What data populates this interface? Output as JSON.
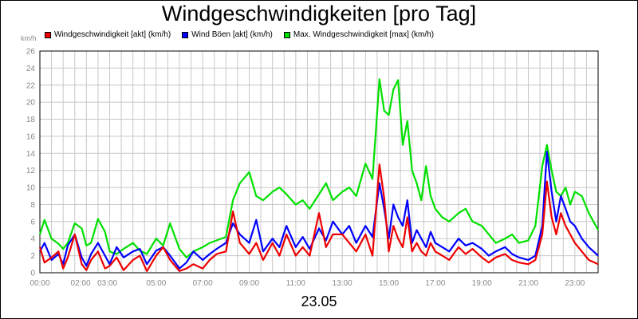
{
  "chart_data": {
    "type": "line",
    "title": "Windgeschwindigkeiten [pro Tag]",
    "ylabel": "km/h",
    "xlabel": "23.05",
    "ylim": [
      0,
      26
    ],
    "yticks": [
      0,
      2,
      4,
      6,
      8,
      10,
      12,
      14,
      16,
      18,
      20,
      22,
      24,
      26
    ],
    "xlim": [
      0,
      24
    ],
    "xticks": [
      {
        "label": "00:00",
        "t": 0
      },
      {
        "label": "02:00",
        "t": 1.75
      },
      {
        "label": "03:00",
        "t": 2.9
      },
      {
        "label": "05:00",
        "t": 5
      },
      {
        "label": "07:00",
        "t": 7
      },
      {
        "label": "09:00",
        "t": 9
      },
      {
        "label": "11:00",
        "t": 11
      },
      {
        "label": "13:00",
        "t": 13
      },
      {
        "label": "15:00",
        "t": 15
      },
      {
        "label": "17:00",
        "t": 17
      },
      {
        "label": "19:00",
        "t": 19
      },
      {
        "label": "21:00",
        "t": 21
      },
      {
        "label": "23:00",
        "t": 23
      }
    ],
    "grid": true,
    "legend_position": "top-left",
    "series": [
      {
        "name": "Max. Windgeschwindigkeit [max] (km/h)",
        "color": "#00e000",
        "x": [
          0,
          0.2,
          0.5,
          0.8,
          1.0,
          1.2,
          1.5,
          1.8,
          2.0,
          2.2,
          2.5,
          2.8,
          3.0,
          3.3,
          3.6,
          4.0,
          4.3,
          4.6,
          5.0,
          5.3,
          5.6,
          6.0,
          6.3,
          6.6,
          7.0,
          7.3,
          7.6,
          8.0,
          8.3,
          8.6,
          9.0,
          9.3,
          9.6,
          10.0,
          10.3,
          10.6,
          11.0,
          11.3,
          11.6,
          12.0,
          12.3,
          12.6,
          13.0,
          13.3,
          13.6,
          14.0,
          14.3,
          14.6,
          14.8,
          15.0,
          15.2,
          15.4,
          15.6,
          15.8,
          16.0,
          16.2,
          16.4,
          16.6,
          16.8,
          17.0,
          17.3,
          17.6,
          18.0,
          18.3,
          18.6,
          19.0,
          19.3,
          19.6,
          20.0,
          20.3,
          20.6,
          21.0,
          21.3,
          21.6,
          21.8,
          22.0,
          22.2,
          22.4,
          22.6,
          22.8,
          23.0,
          23.3,
          23.6,
          24.0
        ],
        "values": [
          4.5,
          6.2,
          4.0,
          3.4,
          2.8,
          3.5,
          5.8,
          5.2,
          3.2,
          3.5,
          6.3,
          4.8,
          2.5,
          2.2,
          2.8,
          3.5,
          2.6,
          2.2,
          4.0,
          3.2,
          5.8,
          2.8,
          1.8,
          2.5,
          3.0,
          3.5,
          3.8,
          4.2,
          8.5,
          10.5,
          11.8,
          9.0,
          8.5,
          9.5,
          10.0,
          9.2,
          8.0,
          8.5,
          7.5,
          9.2,
          10.5,
          8.5,
          9.5,
          10.0,
          9.0,
          12.8,
          11.0,
          22.7,
          19.0,
          18.5,
          21.5,
          22.6,
          15.0,
          17.8,
          12.0,
          10.5,
          8.5,
          12.5,
          9.0,
          7.5,
          6.5,
          6.0,
          7.0,
          7.5,
          6.0,
          5.5,
          4.5,
          3.5,
          4.0,
          4.5,
          3.5,
          3.8,
          5.5,
          12.5,
          15.0,
          12.0,
          9.5,
          9.0,
          10.0,
          8.0,
          9.5,
          9.0,
          7.0,
          5.0
        ]
      },
      {
        "name": "Wind Böen [akt] (km/h)",
        "color": "#0000ff",
        "x": [
          0,
          0.2,
          0.5,
          0.8,
          1.0,
          1.2,
          1.5,
          1.8,
          2.0,
          2.2,
          2.5,
          2.8,
          3.0,
          3.3,
          3.6,
          4.0,
          4.3,
          4.6,
          5.0,
          5.3,
          5.6,
          6.0,
          6.3,
          6.6,
          7.0,
          7.3,
          7.6,
          8.0,
          8.3,
          8.6,
          9.0,
          9.3,
          9.6,
          10.0,
          10.3,
          10.6,
          11.0,
          11.3,
          11.6,
          12.0,
          12.3,
          12.6,
          13.0,
          13.3,
          13.6,
          14.0,
          14.3,
          14.6,
          14.8,
          15.0,
          15.2,
          15.4,
          15.6,
          15.8,
          16.0,
          16.2,
          16.4,
          16.6,
          16.8,
          17.0,
          17.3,
          17.6,
          18.0,
          18.3,
          18.6,
          19.0,
          19.3,
          19.6,
          20.0,
          20.3,
          20.6,
          21.0,
          21.3,
          21.6,
          21.8,
          22.0,
          22.2,
          22.4,
          22.6,
          22.8,
          23.0,
          23.3,
          23.6,
          24.0
        ],
        "values": [
          2.5,
          3.5,
          1.5,
          2.2,
          1.0,
          3.2,
          4.5,
          1.8,
          0.8,
          2.2,
          3.5,
          2.0,
          1.0,
          3.0,
          1.8,
          2.5,
          2.8,
          1.0,
          2.6,
          3.0,
          2.0,
          0.5,
          1.2,
          2.5,
          1.5,
          2.2,
          2.8,
          3.5,
          5.8,
          4.5,
          3.5,
          6.2,
          2.5,
          4.0,
          3.0,
          5.5,
          3.0,
          4.2,
          2.8,
          5.2,
          3.8,
          6.0,
          4.5,
          5.5,
          3.5,
          5.5,
          4.2,
          10.5,
          7.5,
          4.0,
          8.0,
          6.5,
          5.5,
          8.5,
          3.5,
          5.0,
          4.0,
          3.0,
          4.8,
          3.5,
          3.0,
          2.5,
          4.0,
          3.2,
          3.5,
          2.8,
          2.0,
          2.5,
          3.0,
          2.2,
          1.8,
          1.5,
          2.0,
          5.5,
          14.2,
          9.5,
          6.0,
          9.0,
          7.5,
          6.0,
          5.5,
          4.0,
          3.0,
          2.0
        ]
      },
      {
        "name": "Windgeschwindigkeit [akt] (km/h)",
        "color": "#ee0000",
        "x": [
          0,
          0.2,
          0.5,
          0.8,
          1.0,
          1.2,
          1.5,
          1.8,
          2.0,
          2.2,
          2.5,
          2.8,
          3.0,
          3.3,
          3.6,
          4.0,
          4.3,
          4.6,
          5.0,
          5.3,
          5.6,
          6.0,
          6.3,
          6.6,
          7.0,
          7.3,
          7.6,
          8.0,
          8.3,
          8.6,
          9.0,
          9.3,
          9.6,
          10.0,
          10.3,
          10.6,
          11.0,
          11.3,
          11.6,
          12.0,
          12.3,
          12.6,
          13.0,
          13.3,
          13.6,
          14.0,
          14.3,
          14.6,
          14.8,
          15.0,
          15.2,
          15.4,
          15.6,
          15.8,
          16.0,
          16.2,
          16.4,
          16.6,
          16.8,
          17.0,
          17.3,
          17.6,
          18.0,
          18.3,
          18.6,
          19.0,
          19.3,
          19.6,
          20.0,
          20.3,
          20.6,
          21.0,
          21.3,
          21.6,
          21.8,
          22.0,
          22.2,
          22.4,
          22.6,
          22.8,
          23.0,
          23.3,
          23.6,
          24.0
        ],
        "values": [
          3.0,
          1.2,
          1.8,
          2.5,
          0.5,
          1.8,
          4.5,
          1.0,
          0.3,
          1.5,
          2.5,
          0.5,
          0.8,
          1.8,
          0.3,
          1.5,
          2.0,
          0.2,
          2.0,
          3.0,
          1.5,
          0.2,
          0.5,
          1.0,
          0.5,
          1.5,
          2.2,
          2.5,
          7.2,
          3.5,
          2.2,
          3.5,
          1.5,
          3.5,
          2.0,
          4.5,
          2.0,
          3.0,
          2.0,
          7.0,
          3.0,
          4.5,
          4.5,
          3.5,
          2.5,
          4.5,
          2.0,
          12.7,
          8.8,
          2.5,
          5.5,
          4.0,
          3.0,
          6.5,
          2.5,
          3.5,
          2.5,
          2.0,
          3.5,
          2.5,
          2.0,
          1.5,
          3.0,
          2.2,
          2.8,
          1.8,
          1.2,
          1.8,
          2.2,
          1.5,
          1.2,
          1.0,
          1.5,
          4.5,
          10.7,
          6.5,
          4.5,
          7.0,
          5.5,
          4.5,
          3.5,
          2.5,
          1.5,
          1.0
        ]
      }
    ]
  },
  "legend": [
    {
      "label": "Windgeschwindigkeit [akt] (km/h)",
      "color": "#ee0000"
    },
    {
      "label": "Wind Böen [akt] (km/h)",
      "color": "#0000ff"
    },
    {
      "label": "Max. Windgeschwindigkeit [max] (km/h)",
      "color": "#00e000"
    }
  ]
}
